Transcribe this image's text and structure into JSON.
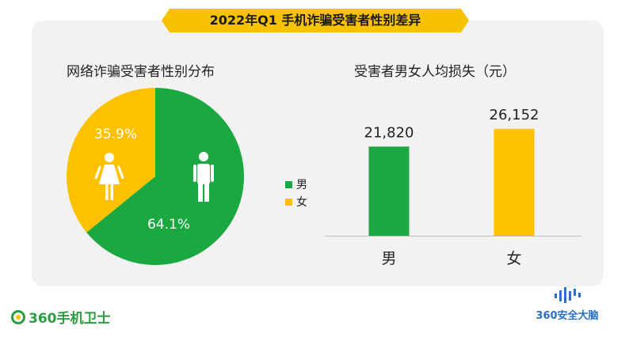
{
  "header": {
    "title": "2022年Q1 手机诈骗受害者性别差异"
  },
  "colors": {
    "male": "#1ba840",
    "female": "#fdc100",
    "banner": "#f7c200"
  },
  "chart_data": [
    {
      "type": "pie",
      "title": "网络诈骗受害者性别分布",
      "slices": [
        {
          "label": "男",
          "value": 64.1,
          "value_label": "64.1%",
          "color": "#1ba840",
          "icon": "male-person-icon"
        },
        {
          "label": "女",
          "value": 35.9,
          "value_label": "35.9%",
          "color": "#fdc100",
          "icon": "female-person-icon"
        }
      ],
      "legend": {
        "placement": "right",
        "entries": [
          "男",
          "女"
        ]
      }
    },
    {
      "type": "bar",
      "title": "受害者男女人均损失（元）",
      "categories": [
        "男",
        "女"
      ],
      "values": [
        21820,
        26152
      ],
      "value_labels": [
        "21,820",
        "26,152"
      ],
      "colors": [
        "#1ba840",
        "#fdc100"
      ],
      "ylim": [
        0,
        30000
      ],
      "grid": false
    }
  ],
  "branding": {
    "left_logo": "360手机卫士",
    "right_logo": "360安全大脑"
  }
}
